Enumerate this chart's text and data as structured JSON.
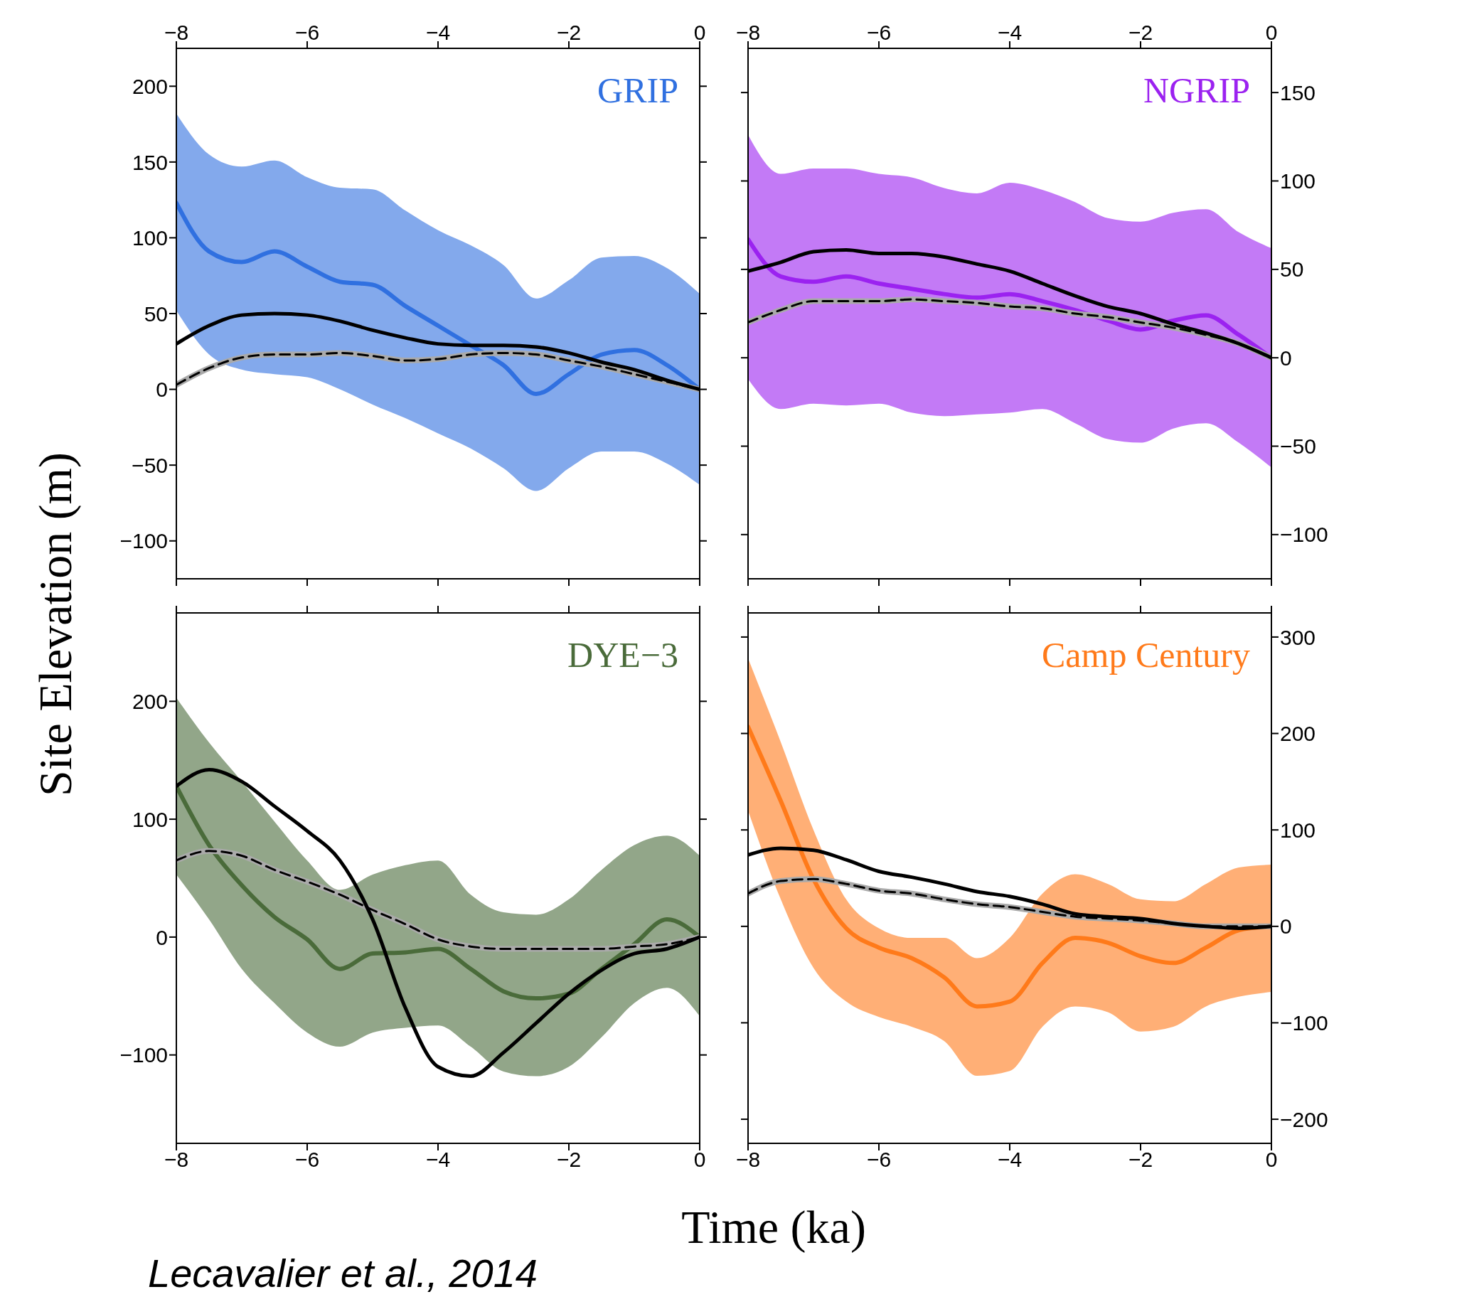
{
  "chart_data": [
    {
      "type": "line",
      "title": "GRIP",
      "ylabel": "Site Elevation (m)",
      "x": [
        -8,
        -7.5,
        -7,
        -6.5,
        -6,
        -5.5,
        -5,
        -4.5,
        -4,
        -3.5,
        -3,
        -2.5,
        -2,
        -1.5,
        -1,
        -0.5,
        0
      ],
      "xlim": [
        -8,
        0
      ],
      "xticks": [
        -8,
        -6,
        -4,
        -2,
        0
      ],
      "x2lim": [
        -8,
        0
      ],
      "x2ticks": [
        -8,
        -6,
        -4,
        -2,
        0
      ],
      "ylim": [
        -125,
        225
      ],
      "yticks": [
        -100,
        -50,
        0,
        50,
        100,
        150,
        200
      ],
      "tick_labels": "y",
      "series": [
        {
          "color": "#3070e0",
          "values": [
            123,
            91,
            84,
            91,
            81,
            71,
            69,
            55,
            42,
            29,
            16,
            -3,
            10,
            23,
            26,
            16,
            0
          ],
          "lower": [
            52,
            23,
            13,
            10,
            8,
            0,
            -10,
            -19,
            -29,
            -39,
            -52,
            -67,
            -52,
            -41,
            -41,
            -49,
            -63
          ],
          "upper": [
            182,
            155,
            147,
            151,
            140,
            133,
            132,
            118,
            105,
            95,
            82,
            60,
            72,
            87,
            88,
            80,
            63
          ]
        },
        {
          "color": "#aaaaaa",
          "values": [
            3,
            14,
            21,
            23,
            23,
            24,
            22,
            19,
            20,
            23,
            24,
            23,
            19,
            15,
            10,
            5,
            0
          ]
        },
        {
          "color": "#000000",
          "values": [
            30,
            42,
            49,
            50,
            49,
            45,
            39,
            34,
            30,
            29,
            29,
            28,
            24,
            18,
            13,
            6,
            0
          ]
        },
        {
          "color": "#000000",
          "line_style": "dashed",
          "values": [
            3,
            14,
            21,
            23,
            23,
            24,
            22,
            19,
            20,
            23,
            24,
            23,
            19,
            15,
            10,
            5,
            0
          ]
        }
      ]
    },
    {
      "type": "line",
      "title": "NGRIP",
      "x": [
        -8,
        -7.5,
        -7,
        -6.5,
        -6,
        -5.5,
        -5,
        -4.5,
        -4,
        -3.5,
        -3,
        -2.5,
        -2,
        -1.5,
        -1,
        -0.5,
        0
      ],
      "xlim": [
        -8,
        0
      ],
      "xticks": [
        -8,
        -6,
        -4,
        -2,
        0
      ],
      "x2lim": [
        -8,
        0
      ],
      "x2ticks": [
        -8,
        -6,
        -4,
        -2,
        0
      ],
      "ylim": [
        -125,
        175
      ],
      "yticks": [
        -100,
        -50,
        0,
        50,
        100,
        150
      ],
      "tick_labels": "y",
      "series": [
        {
          "color": "#9b22f0",
          "values": [
            67,
            46,
            43,
            46,
            42,
            39,
            36,
            34,
            36,
            32,
            27,
            21,
            16,
            21,
            24,
            13,
            0
          ],
          "lower": [
            -12,
            -29,
            -26,
            -27,
            -26,
            -31,
            -33,
            -32,
            -31,
            -29,
            -37,
            -46,
            -48,
            -40,
            -37,
            -48,
            -62
          ],
          "upper": [
            126,
            104,
            107,
            107,
            104,
            102,
            96,
            93,
            99,
            95,
            88,
            79,
            77,
            82,
            84,
            71,
            62
          ]
        },
        {
          "color": "#aaaaaa",
          "values": [
            20,
            27,
            32,
            32,
            32,
            33,
            32,
            31,
            29,
            28,
            25,
            23,
            20,
            17,
            13,
            8,
            0
          ]
        },
        {
          "color": "#000000",
          "values": [
            49,
            54,
            60,
            61,
            59,
            59,
            57,
            53,
            49,
            42,
            35,
            29,
            25,
            19,
            14,
            8,
            0
          ]
        },
        {
          "color": "#000000",
          "line_style": "dashed",
          "values": [
            20,
            27,
            32,
            32,
            32,
            33,
            32,
            31,
            29,
            28,
            25,
            23,
            20,
            17,
            13,
            8,
            0
          ]
        }
      ]
    },
    {
      "type": "line",
      "title": "DYE−3",
      "xlabel": "Time (ka)",
      "annotations": [
        "Lecavalier et al., 2014"
      ],
      "x": [
        -8,
        -7.5,
        -7,
        -6.5,
        -6,
        -5.5,
        -5,
        -4.5,
        -4,
        -3.5,
        -3,
        -2.5,
        -2,
        -1.5,
        -1,
        -0.5,
        0
      ],
      "xlim": [
        -8,
        0
      ],
      "xticks": [
        -8,
        -6,
        -4,
        -2,
        0
      ],
      "ylim": [
        -175,
        275
      ],
      "yticks": [
        -100,
        0,
        100,
        200
      ],
      "series": [
        {
          "color": "#4a6b3a",
          "values": [
            128,
            78,
            44,
            17,
            -2,
            -27,
            -14,
            -13,
            -10,
            -27,
            -46,
            -52,
            -48,
            -27,
            -6,
            15,
            0
          ],
          "lower": [
            53,
            15,
            -27,
            -56,
            -81,
            -93,
            -81,
            -77,
            -75,
            -93,
            -114,
            -118,
            -110,
            -85,
            -56,
            -43,
            -67
          ],
          "upper": [
            203,
            165,
            132,
            98,
            65,
            40,
            53,
            61,
            65,
            36,
            21,
            19,
            32,
            57,
            78,
            86,
            69
          ]
        },
        {
          "color": "#aaaaaa",
          "values": [
            65,
            73,
            69,
            57,
            47,
            36,
            23,
            11,
            -2,
            -8,
            -10,
            -10,
            -10,
            -10,
            -8,
            -6,
            0
          ]
        },
        {
          "color": "#000000",
          "values": [
            128,
            142,
            132,
            111,
            90,
            65,
            15,
            -60,
            -110,
            -118,
            -98,
            -73,
            -48,
            -28,
            -14,
            -10,
            0
          ]
        },
        {
          "color": "#000000",
          "line_style": "dashed",
          "values": [
            65,
            73,
            69,
            57,
            47,
            36,
            23,
            11,
            -2,
            -8,
            -10,
            -10,
            -10,
            -10,
            -8,
            -6,
            0
          ]
        }
      ]
    },
    {
      "type": "line",
      "title": "Camp Century",
      "x": [
        -8,
        -7.5,
        -7,
        -6.5,
        -6,
        -5.5,
        -5,
        -4.5,
        -4,
        -3.5,
        -3,
        -2.5,
        -2,
        -1.5,
        -1,
        -0.5,
        0
      ],
      "xlim": [
        -8,
        0
      ],
      "xticks": [
        -8,
        -6,
        -4,
        -2,
        0
      ],
      "ylim": [
        -225,
        325
      ],
      "yticks": [
        -200,
        -100,
        0,
        100,
        200,
        300
      ],
      "series": [
        {
          "color": "#ff7a1a",
          "values": [
            207,
            130,
            49,
            -2,
            -22,
            -33,
            -53,
            -83,
            -78,
            -38,
            -12,
            -17,
            -31,
            -38,
            -22,
            -4,
            0
          ],
          "lower": [
            120,
            28,
            -43,
            -78,
            -94,
            -104,
            -119,
            -155,
            -150,
            -104,
            -83,
            -89,
            -109,
            -104,
            -83,
            -73,
            -68
          ],
          "upper": [
            278,
            191,
            100,
            28,
            -2,
            -12,
            -12,
            -33,
            -12,
            34,
            54,
            44,
            28,
            26,
            44,
            61,
            64
          ]
        },
        {
          "color": "#aaaaaa",
          "values": [
            34,
            47,
            49,
            44,
            37,
            34,
            28,
            23,
            20,
            15,
            10,
            8,
            6,
            3,
            0,
            0,
            0
          ]
        },
        {
          "color": "#000000",
          "values": [
            74,
            81,
            79,
            69,
            57,
            51,
            44,
            36,
            31,
            23,
            13,
            10,
            8,
            3,
            0,
            -2,
            0
          ]
        },
        {
          "color": "#000000",
          "line_style": "dashed",
          "values": [
            34,
            47,
            49,
            44,
            37,
            34,
            28,
            23,
            20,
            15,
            10,
            8,
            6,
            3,
            0,
            0,
            0
          ]
        }
      ]
    }
  ]
}
